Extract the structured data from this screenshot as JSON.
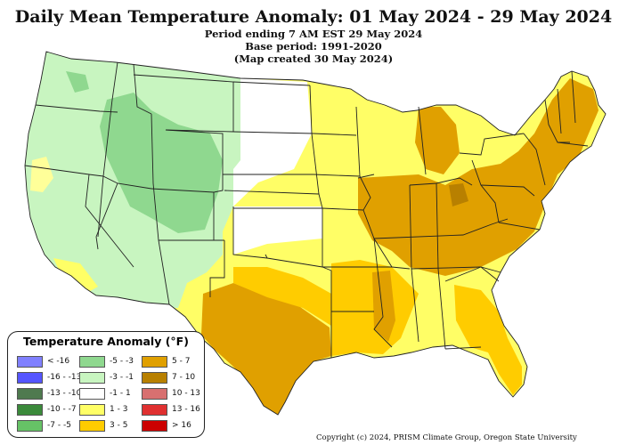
{
  "title": "Daily Mean Temperature Anomaly: 01 May 2024 - 29 May 2024",
  "subtitles": [
    "Period ending 7 AM EST 29 May 2024",
    "Base period: 1991-2020",
    "(Map created 30 May 2024)"
  ],
  "legend": {
    "title": "Temperature Anomaly (°F)",
    "items": [
      {
        "label": "< -16",
        "color": "#8080ff"
      },
      {
        "label": "-16 - -13",
        "color": "#5555ff"
      },
      {
        "label": "-13 - -10",
        "color": "#4f7a4f"
      },
      {
        "label": "-10 - -7",
        "color": "#3b8a3b"
      },
      {
        "label": "-7 - -5",
        "color": "#66c266"
      },
      {
        "label": "-5 - -3",
        "color": "#8fd88f"
      },
      {
        "label": "-3 - -1",
        "color": "#c8f5c0"
      },
      {
        "label": "-1 - 1",
        "color": "#ffffff"
      },
      {
        "label": "1 - 3",
        "color": "#ffff66"
      },
      {
        "label": "3 - 5",
        "color": "#ffcc00"
      },
      {
        "label": "5 - 7",
        "color": "#e0a000"
      },
      {
        "label": "7 - 10",
        "color": "#b88000"
      },
      {
        "label": "10 - 13",
        "color": "#d87070"
      },
      {
        "label": "13 - 16",
        "color": "#e03030"
      },
      {
        "label": "> 16",
        "color": "#cc0000"
      }
    ]
  },
  "copyright": "Copyright (c) 2024, PRISM Climate Group, Oregon State University"
}
